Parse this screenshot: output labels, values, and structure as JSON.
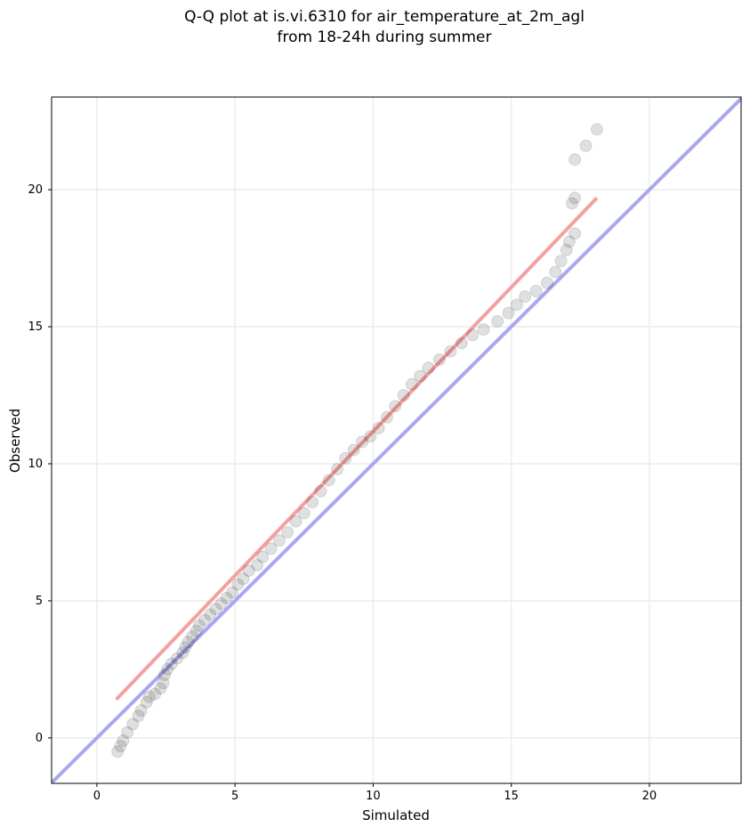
{
  "chart_data": {
    "type": "scatter",
    "title": [
      "Q-Q plot at is.vi.6310 for air_temperature_at_2m_agl",
      "from 18-24h during summer"
    ],
    "x_label": "Simulated",
    "y_label": "Observed",
    "xlim": [
      -1.64,
      23.32
    ],
    "ylim": [
      -1.66,
      23.38
    ],
    "xticks": [
      0,
      5,
      10,
      15,
      20
    ],
    "yticks": [
      0,
      5,
      10,
      15,
      20
    ],
    "grid": true,
    "series": [
      {
        "type": "scatter",
        "color": "#000000",
        "alpha": 0.12,
        "x": [
          0.75,
          0.85,
          0.95,
          1.1,
          1.3,
          1.5,
          1.6,
          1.8,
          1.9,
          2.1,
          2.3,
          2.4,
          2.45,
          2.55,
          2.7,
          2.9,
          3.1,
          3.2,
          3.3,
          3.45,
          3.6,
          3.7,
          3.9,
          4.1,
          4.3,
          4.5,
          4.7,
          4.9,
          5.1,
          5.3,
          5.5,
          5.8,
          6.0,
          6.3,
          6.6,
          6.9,
          7.2,
          7.5,
          7.8,
          8.1,
          8.4,
          8.7,
          9.0,
          9.3,
          9.6,
          9.9,
          10.2,
          10.5,
          10.8,
          11.1,
          11.4,
          11.7,
          12.0,
          12.4,
          12.8,
          13.2,
          13.6,
          14.0,
          14.5,
          14.9,
          15.2,
          15.5,
          15.9,
          16.3,
          16.6,
          16.8,
          17.0,
          17.1,
          17.3,
          17.2,
          17.3,
          17.3,
          17.7,
          18.1
        ],
        "y": [
          -0.5,
          -0.3,
          -0.1,
          0.2,
          0.5,
          0.8,
          1.0,
          1.3,
          1.5,
          1.6,
          1.8,
          2.0,
          2.3,
          2.5,
          2.7,
          2.9,
          3.1,
          3.3,
          3.5,
          3.7,
          3.9,
          4.1,
          4.3,
          4.5,
          4.7,
          4.9,
          5.1,
          5.3,
          5.6,
          5.8,
          6.1,
          6.3,
          6.6,
          6.9,
          7.2,
          7.5,
          7.9,
          8.2,
          8.6,
          9.0,
          9.4,
          9.8,
          10.2,
          10.5,
          10.8,
          11.0,
          11.3,
          11.7,
          12.1,
          12.5,
          12.9,
          13.2,
          13.5,
          13.8,
          14.1,
          14.4,
          14.7,
          14.9,
          15.2,
          15.5,
          15.8,
          16.1,
          16.3,
          16.6,
          17.0,
          17.4,
          17.8,
          18.1,
          18.4,
          19.5,
          19.7,
          21.1,
          21.6,
          22.2
        ]
      },
      {
        "type": "line",
        "color": "#f5a0a0",
        "x": [
          0.7,
          18.1
        ],
        "y": [
          1.4,
          19.7
        ]
      },
      {
        "type": "line",
        "color": "#a8a8f2",
        "x": [
          -1.64,
          23.32
        ],
        "y": [
          -1.64,
          23.32
        ]
      }
    ]
  }
}
